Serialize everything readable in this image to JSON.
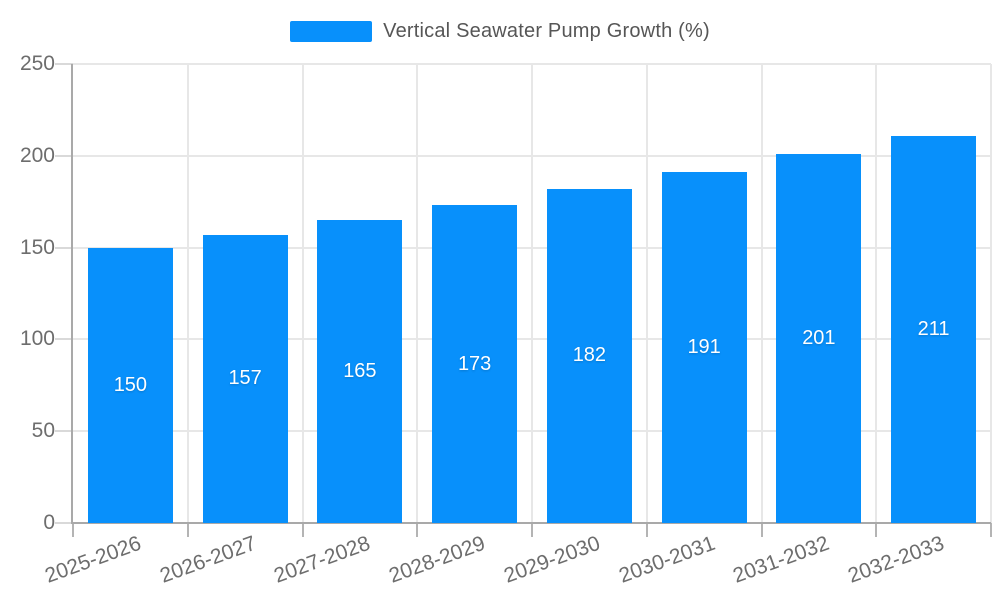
{
  "legend": {
    "position": "top",
    "label": "Vertical Seawater Pump Growth (%)"
  },
  "chart_data": {
    "type": "bar",
    "title": "Vertical Seawater Pump Growth (%)",
    "categories": [
      "2025-2026",
      "2026-2027",
      "2027-2028",
      "2028-2029",
      "2029-2030",
      "2030-2031",
      "2031-2032",
      "2032-2033"
    ],
    "values": [
      150,
      157,
      165,
      173,
      182,
      191,
      201,
      211
    ],
    "value_labels": "inside-center-white",
    "xlabel": "",
    "ylabel": "",
    "ylim": [
      0,
      250
    ],
    "yticks": [
      0,
      50,
      100,
      150,
      200,
      250
    ],
    "grid": "on",
    "legend_position": "top-center",
    "x_label_rotation_deg": -20
  },
  "colors": {
    "bar": "#0890fb",
    "background": "#ffffff",
    "grid": "#e7e7e7",
    "axis": "#a9a9a9",
    "tick_text": "#6d6d6d",
    "legend_text": "#565656",
    "bar_value_text": "#ffffff"
  }
}
